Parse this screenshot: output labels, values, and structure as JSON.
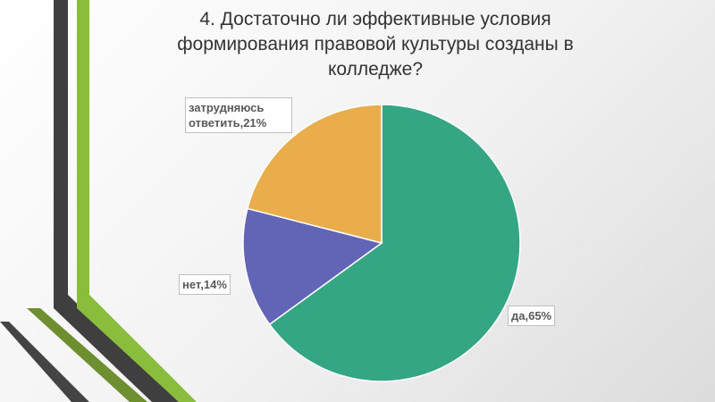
{
  "chart_data": {
    "type": "pie",
    "title": "4. Достаточно ли эффективные условия формирования правовой культуры созданы в колледже?",
    "categories": [
      "да",
      "нет",
      "затрудняюсь ответить"
    ],
    "values": [
      65,
      14,
      21
    ],
    "value_labels": [
      "да,65%",
      "нет,14%",
      "затрудняюсь ответить,21%"
    ],
    "colors": [
      "#35a683",
      "#6264b5",
      "#e9ad4b"
    ]
  }
}
